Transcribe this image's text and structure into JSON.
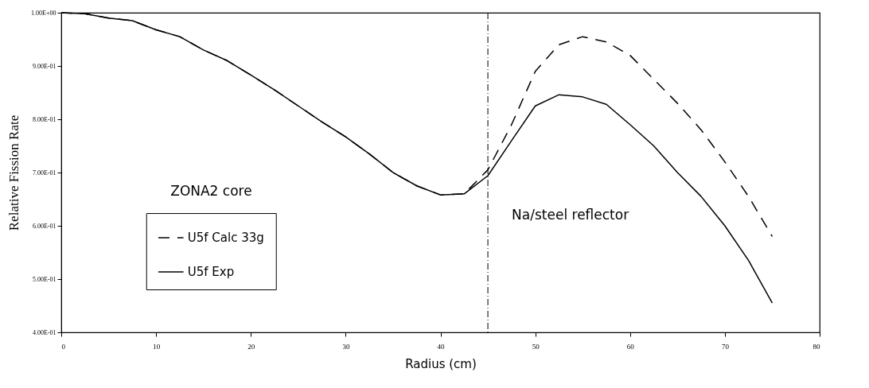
{
  "chart_data": {
    "type": "line",
    "xlabel": "Radius (cm)",
    "ylabel": "Relative Fission Rate",
    "x": [
      0,
      2.5,
      5,
      7.5,
      10,
      12.5,
      15,
      17.5,
      20,
      22.5,
      25,
      27.5,
      30,
      32.5,
      35,
      37.5,
      40,
      42.5,
      45,
      47.5,
      50,
      52.5,
      55,
      57.5,
      60,
      62.5,
      65,
      67.5,
      70,
      72.5,
      75
    ],
    "series": [
      {
        "name": "U5f Calc 33g",
        "color": "#000000",
        "line_style": "dashed",
        "values": [
          1.0,
          0.998,
          0.99,
          0.985,
          0.968,
          0.955,
          0.93,
          0.91,
          0.883,
          0.855,
          0.825,
          0.795,
          0.767,
          0.735,
          0.7,
          0.675,
          0.658,
          0.66,
          0.705,
          0.79,
          0.89,
          0.94,
          0.955,
          0.945,
          0.92,
          0.875,
          0.83,
          0.78,
          0.72,
          0.655,
          0.58
        ]
      },
      {
        "name": "U5f Exp",
        "color": "#000000",
        "line_style": "solid",
        "values": [
          1.0,
          0.998,
          0.99,
          0.985,
          0.968,
          0.955,
          0.93,
          0.91,
          0.883,
          0.855,
          0.825,
          0.795,
          0.767,
          0.735,
          0.7,
          0.675,
          0.658,
          0.66,
          0.694,
          0.76,
          0.825,
          0.846,
          0.842,
          0.828,
          0.79,
          0.75,
          0.7,
          0.655,
          0.6,
          0.535,
          0.455
        ]
      }
    ],
    "xlim": [
      0,
      80
    ],
    "xticks": [
      0,
      10,
      20,
      30,
      40,
      50,
      60,
      70,
      80
    ],
    "ylim": [
      0.4,
      1.0
    ],
    "yticks": [
      {
        "value": 0.4,
        "label": "4.00E-01"
      },
      {
        "value": 0.5,
        "label": "5.00E-01"
      },
      {
        "value": 0.6,
        "label": "6.00E-01"
      },
      {
        "value": 0.7,
        "label": "7.00E-01"
      },
      {
        "value": 0.8,
        "label": "8.00E-01"
      },
      {
        "value": 0.9,
        "label": "9.00E-01"
      },
      {
        "value": 1.0,
        "label": "1.00E+00"
      }
    ],
    "ref_lines": [
      {
        "axis": "x",
        "value": 45,
        "label": null,
        "color": "#000000",
        "line_style": "dashed"
      }
    ],
    "annotations": [
      "ZONA2 core",
      "Na/steel reflector"
    ],
    "grid": false,
    "legend": "bottom left",
    "marker": "none"
  }
}
